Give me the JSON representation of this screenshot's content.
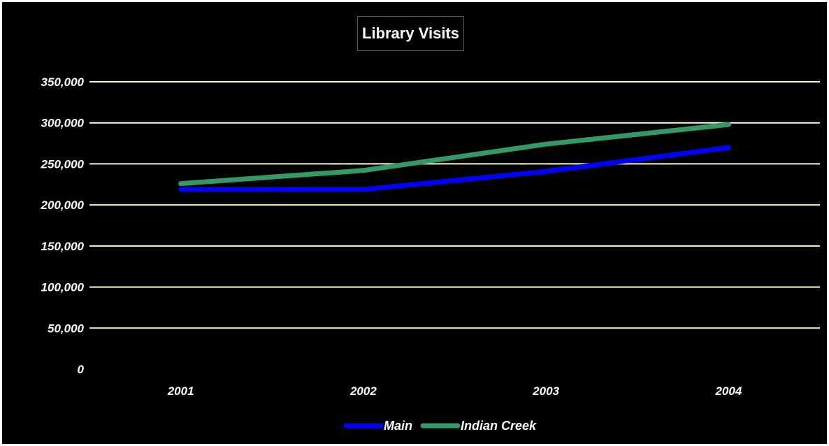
{
  "chart_data": {
    "type": "line",
    "title": "Library Visits",
    "xlabel": "",
    "ylabel": "",
    "categories": [
      "2001",
      "2002",
      "2003",
      "2004"
    ],
    "ylim": [
      0,
      350000
    ],
    "ytick_values": [
      0,
      50000,
      100000,
      150000,
      200000,
      250000,
      300000,
      350000
    ],
    "ytick_labels": [
      "0",
      "50,000",
      "100,000",
      "150,000",
      "200,000",
      "250,000",
      "300,000",
      "350,000"
    ],
    "grid": true,
    "legend_position": "bottom",
    "background_color": "#000000",
    "grid_color": "#ffffcc",
    "series": [
      {
        "name": "Main",
        "color": "#0000ff",
        "values": [
          219000,
          219000,
          241000,
          270000
        ]
      },
      {
        "name": "Indian Creek",
        "color": "#339966",
        "values": [
          226000,
          242000,
          274000,
          298000
        ]
      }
    ]
  }
}
